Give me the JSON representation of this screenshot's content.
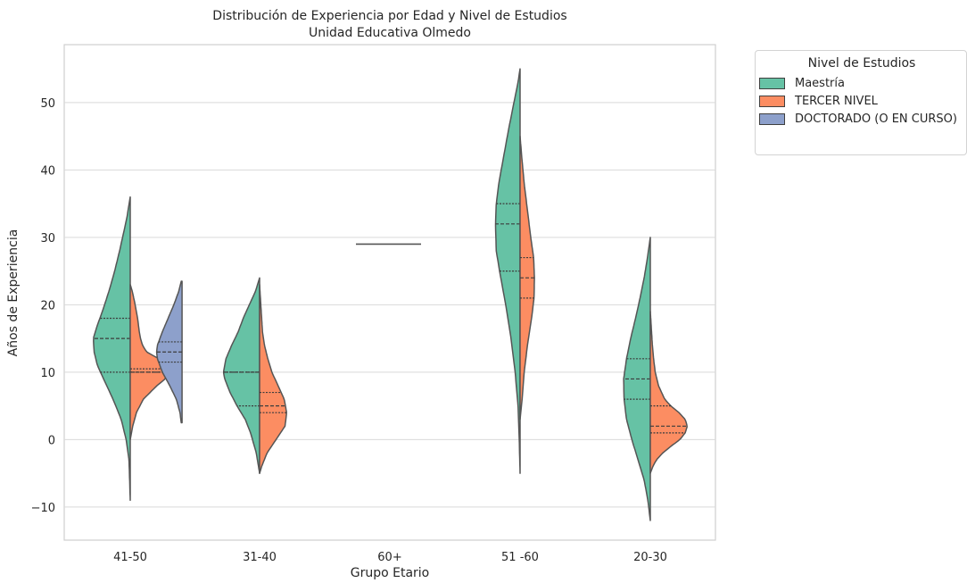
{
  "chart_data": {
    "type": "violin",
    "title": "Distribución de Experiencia por Edad y Nivel de Estudios",
    "subtitle": "Unidad Educativa Olmedo",
    "xlabel": "Grupo Etario",
    "ylabel": "Años de Experiencia",
    "ylim": [
      -15,
      58
    ],
    "yticks": [
      -10,
      0,
      10,
      20,
      30,
      40,
      50
    ],
    "ytick_labels": [
      "−10",
      "0",
      "10",
      "20",
      "30",
      "40",
      "50"
    ],
    "categories": [
      "41-50",
      "31-40",
      "60+",
      "51 -60",
      "20-30"
    ],
    "grid": true,
    "legend": {
      "title": "Nivel de Estudios",
      "placement": "outside-top-right",
      "entries": [
        "Maestría",
        "TERCER NIVEL",
        "DOCTORADO (O EN CURSO)"
      ]
    },
    "series": [
      {
        "name": "Maestría",
        "color": "#66c2a5",
        "side": "left",
        "violins": [
          {
            "category": "41-50",
            "min": -9,
            "max": 36,
            "quartiles": [
              10,
              15,
              18
            ],
            "profile": [
              [
                -9,
                0
              ],
              [
                -3,
                0.03
              ],
              [
                0,
                0.1
              ],
              [
                3,
                0.22
              ],
              [
                6,
                0.42
              ],
              [
                9,
                0.65
              ],
              [
                11,
                0.8
              ],
              [
                13,
                0.88
              ],
              [
                15,
                0.9
              ],
              [
                17,
                0.8
              ],
              [
                19,
                0.68
              ],
              [
                22,
                0.52
              ],
              [
                25,
                0.38
              ],
              [
                28,
                0.26
              ],
              [
                31,
                0.15
              ],
              [
                33,
                0.08
              ],
              [
                36,
                0
              ]
            ]
          },
          {
            "category": "31-40",
            "min": -5,
            "max": 24,
            "quartiles": [
              5,
              10,
              10
            ],
            "profile": [
              [
                -5,
                0
              ],
              [
                -2,
                0.08
              ],
              [
                1,
                0.22
              ],
              [
                3,
                0.35
              ],
              [
                5,
                0.55
              ],
              [
                7,
                0.72
              ],
              [
                9,
                0.85
              ],
              [
                10,
                0.88
              ],
              [
                12,
                0.82
              ],
              [
                14,
                0.68
              ],
              [
                16,
                0.52
              ],
              [
                18,
                0.4
              ],
              [
                20,
                0.25
              ],
              [
                22,
                0.1
              ],
              [
                24,
                0
              ]
            ]
          },
          {
            "category": "60+",
            "min": 29,
            "max": 29,
            "quartiles": [],
            "line_half_width": 0.56
          },
          {
            "category": "51 -60",
            "min": -5,
            "max": 55,
            "quartiles": [
              25,
              32,
              35
            ],
            "profile": [
              [
                -5,
                0
              ],
              [
                0,
                0.02
              ],
              [
                5,
                0.05
              ],
              [
                10,
                0.12
              ],
              [
                15,
                0.22
              ],
              [
                20,
                0.35
              ],
              [
                25,
                0.5
              ],
              [
                28,
                0.58
              ],
              [
                32,
                0.6
              ],
              [
                35,
                0.58
              ],
              [
                38,
                0.52
              ],
              [
                42,
                0.4
              ],
              [
                46,
                0.28
              ],
              [
                50,
                0.15
              ],
              [
                53,
                0.05
              ],
              [
                55,
                0
              ]
            ]
          },
          {
            "category": "20-30",
            "min": -12,
            "max": 30,
            "quartiles": [
              6,
              9,
              12
            ],
            "profile": [
              [
                -12,
                0
              ],
              [
                -9,
                0.06
              ],
              [
                -6,
                0.15
              ],
              [
                -3,
                0.3
              ],
              [
                0,
                0.45
              ],
              [
                3,
                0.58
              ],
              [
                6,
                0.64
              ],
              [
                9,
                0.65
              ],
              [
                12,
                0.58
              ],
              [
                15,
                0.48
              ],
              [
                18,
                0.36
              ],
              [
                21,
                0.25
              ],
              [
                24,
                0.15
              ],
              [
                27,
                0.07
              ],
              [
                30,
                0
              ]
            ]
          }
        ]
      },
      {
        "name": "TERCER NIVEL",
        "color": "#fc8d62",
        "side": "right",
        "violins": [
          {
            "category": "41-50",
            "min": 0,
            "max": 23,
            "quartiles": [
              10,
              10,
              10.5
            ],
            "profile": [
              [
                0,
                0
              ],
              [
                2,
                0.06
              ],
              [
                4,
                0.15
              ],
              [
                6,
                0.32
              ],
              [
                8,
                0.65
              ],
              [
                9,
                0.85
              ],
              [
                10,
                0.95
              ],
              [
                11,
                0.92
              ],
              [
                12,
                0.7
              ],
              [
                13,
                0.4
              ],
              [
                14,
                0.3
              ],
              [
                15,
                0.25
              ],
              [
                16,
                0.22
              ],
              [
                18,
                0.18
              ],
              [
                20,
                0.12
              ],
              [
                22,
                0.05
              ],
              [
                23,
                0
              ]
            ]
          },
          {
            "category": "31-40",
            "min": -5,
            "max": 23,
            "quartiles": [
              4,
              5,
              7
            ],
            "profile": [
              [
                -5,
                0
              ],
              [
                -4,
                0.05
              ],
              [
                -2,
                0.18
              ],
              [
                0,
                0.4
              ],
              [
                2,
                0.62
              ],
              [
                4,
                0.66
              ],
              [
                6,
                0.6
              ],
              [
                8,
                0.45
              ],
              [
                10,
                0.3
              ],
              [
                12,
                0.2
              ],
              [
                14,
                0.12
              ],
              [
                16,
                0.07
              ],
              [
                18,
                0.05
              ],
              [
                20,
                0.03
              ],
              [
                23,
                0
              ]
            ]
          },
          {
            "category": "51 -60",
            "min": 3,
            "max": 45,
            "quartiles": [
              21,
              24,
              27
            ],
            "profile": [
              [
                3,
                0
              ],
              [
                6,
                0.05
              ],
              [
                10,
                0.1
              ],
              [
                14,
                0.18
              ],
              [
                18,
                0.28
              ],
              [
                21,
                0.34
              ],
              [
                24,
                0.35
              ],
              [
                27,
                0.33
              ],
              [
                30,
                0.26
              ],
              [
                34,
                0.18
              ],
              [
                38,
                0.1
              ],
              [
                42,
                0.04
              ],
              [
                45,
                0
              ]
            ]
          },
          {
            "category": "20-30",
            "min": -5,
            "max": 19,
            "quartiles": [
              1,
              2,
              5
            ],
            "profile": [
              [
                -5,
                0
              ],
              [
                -4,
                0.06
              ],
              [
                -3,
                0.15
              ],
              [
                -2,
                0.3
              ],
              [
                -1,
                0.5
              ],
              [
                0,
                0.72
              ],
              [
                1,
                0.85
              ],
              [
                2,
                0.9
              ],
              [
                3,
                0.85
              ],
              [
                4,
                0.7
              ],
              [
                5,
                0.5
              ],
              [
                6,
                0.35
              ],
              [
                8,
                0.2
              ],
              [
                10,
                0.12
              ],
              [
                12,
                0.08
              ],
              [
                14,
                0.05
              ],
              [
                16,
                0.03
              ],
              [
                19,
                0
              ]
            ]
          }
        ]
      },
      {
        "name": "DOCTORADO (O EN CURSO)",
        "color": "#8da0cb",
        "side": "left",
        "violins": [
          {
            "category": "41-50",
            "min": 2.5,
            "max": 23.5,
            "quartiles": [
              11.5,
              13,
              14.5
            ],
            "offset": 0.48,
            "flat_right": true,
            "profile": [
              [
                2.5,
                0.02
              ],
              [
                4,
                0.05
              ],
              [
                6,
                0.14
              ],
              [
                8,
                0.3
              ],
              [
                10,
                0.48
              ],
              [
                12,
                0.6
              ],
              [
                13,
                0.62
              ],
              [
                14,
                0.6
              ],
              [
                16,
                0.48
              ],
              [
                18,
                0.34
              ],
              [
                20,
                0.2
              ],
              [
                22,
                0.08
              ],
              [
                23.5,
                0.02
              ]
            ]
          }
        ]
      }
    ]
  }
}
